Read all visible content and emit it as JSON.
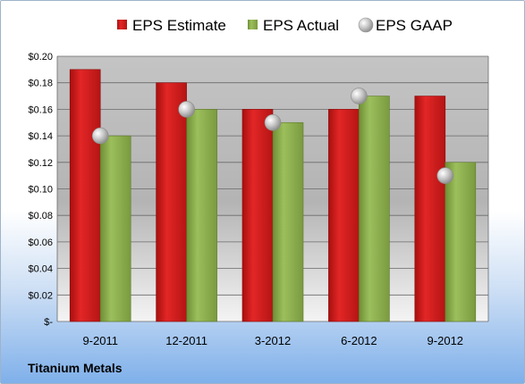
{
  "chart_data": {
    "type": "bar",
    "categories": [
      "9-2011",
      "12-2011",
      "3-2012",
      "6-2012",
      "9-2012"
    ],
    "series": [
      {
        "name": "EPS Estimate",
        "values": [
          0.19,
          0.18,
          0.16,
          0.16,
          0.17
        ],
        "color": "#cc1a1a"
      },
      {
        "name": "EPS Actual",
        "values": [
          0.14,
          0.16,
          0.15,
          0.17,
          0.12
        ],
        "color": "#8cad4f"
      },
      {
        "name": "EPS GAAP",
        "values": [
          0.14,
          0.16,
          0.15,
          0.17,
          0.11
        ],
        "color": "#b8b8b8",
        "marker": "circle"
      }
    ],
    "y_ticks": [
      "$-",
      "$0.02",
      "$0.04",
      "$0.06",
      "$0.08",
      "$0.10",
      "$0.12",
      "$0.14",
      "$0.16",
      "$0.18",
      "$0.20"
    ],
    "ylim": [
      0,
      0.2
    ],
    "grid": true,
    "legend_position": "top"
  },
  "company": "Titanium Metals"
}
